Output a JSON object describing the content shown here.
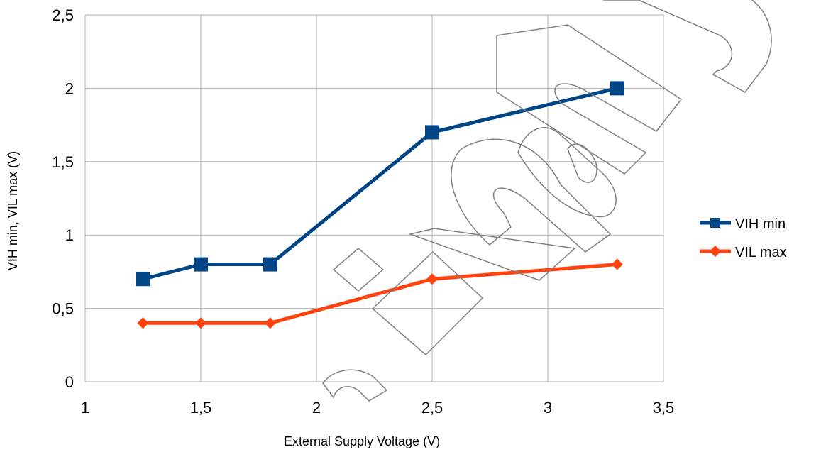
{
  "chart_data": {
    "type": "line",
    "title": "",
    "xlabel": "External Supply Voltage (V)",
    "ylabel": "VIH min, VIL max (V)",
    "xlim": [
      1,
      3.5
    ],
    "ylim": [
      0,
      2.5
    ],
    "x_ticks": [
      "1",
      "1,5",
      "2",
      "2,5",
      "3",
      "3,5"
    ],
    "y_ticks": [
      "0",
      "0,5",
      "1",
      "1,5",
      "2",
      "2,5"
    ],
    "grid": true,
    "legend_position": "right",
    "x": [
      1.25,
      1.5,
      1.8,
      2.5,
      3.3
    ],
    "series": [
      {
        "name": "VIH min",
        "values": [
          0.7,
          0.8,
          0.8,
          1.7,
          2.0
        ],
        "color": "#004586",
        "marker": "square"
      },
      {
        "name": "VIL max",
        "values": [
          0.4,
          0.4,
          0.4,
          0.7,
          0.8
        ],
        "color": "#ff420e",
        "marker": "diamond"
      }
    ],
    "watermark": "Preliminary"
  }
}
